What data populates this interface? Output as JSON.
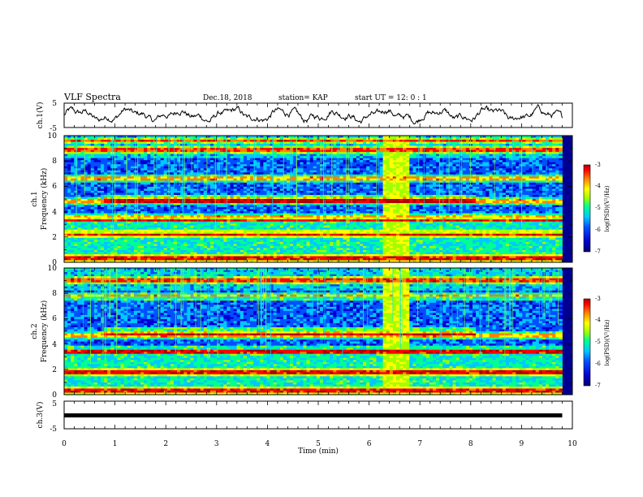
{
  "header": {
    "title": "VLF Spectra",
    "date": "Dec.18, 2018",
    "station": "station= KAP",
    "start": "start  UT =   12: 0  : 1"
  },
  "chart_data": [
    {
      "type": "line",
      "title": "",
      "ylabel": "ch.1(V)",
      "xlim": [
        0,
        10
      ],
      "ylim": [
        -5,
        5
      ],
      "yticks": [
        "5",
        "-5"
      ],
      "description_series": "noisy waveform oscillating around 0 V, amplitude about ±2.5 V"
    },
    {
      "type": "heatmap",
      "ylabel_line1": "ch.1",
      "ylabel_line2": "Frequency (kHz)",
      "xlim": [
        0,
        10
      ],
      "ylim": [
        0,
        10
      ],
      "yticks": [
        "0",
        "2",
        "4",
        "6",
        "8",
        "10"
      ],
      "colorbar": {
        "label": "log(PSD)(V²/Hz)",
        "range": [
          -7,
          -3
        ],
        "ticks": [
          "-3",
          "-4",
          "-5",
          "-6",
          "-7"
        ]
      },
      "strong_lines_khz": [
        0.3,
        2.2,
        3.3,
        3.6,
        4.8,
        6.6,
        8.9,
        9.6
      ],
      "burst_interval_min": [
        6.3,
        6.8
      ],
      "regime_changes_min": [
        0.8,
        8.1
      ]
    },
    {
      "type": "heatmap",
      "ylabel_line1": "ch.2",
      "ylabel_line2": "Frequency (kHz)",
      "xlim": [
        0,
        10
      ],
      "ylim": [
        0,
        10
      ],
      "yticks": [
        "0",
        "2",
        "4",
        "6",
        "8",
        "10"
      ],
      "colorbar": {
        "label": "log(PSD)(V²/Hz)",
        "range": [
          -7,
          -3
        ],
        "ticks": [
          "-3",
          "-4",
          "-5",
          "-6",
          "-7"
        ]
      },
      "strong_lines_khz": [
        0.3,
        1.8,
        3.3,
        3.5,
        4.7,
        7.8,
        9.0
      ],
      "burst_interval_min": [
        6.3,
        6.8
      ],
      "regime_changes_min": [
        0.8,
        8.1
      ]
    },
    {
      "type": "line",
      "ylabel": "ch.3(V)",
      "xlim": [
        0,
        10
      ],
      "ylim": [
        -5,
        5
      ],
      "yticks": [
        "5",
        "-5"
      ],
      "x_start": 0,
      "x_end": 9.8,
      "constant_value": 0,
      "xlabel": "Time (min)",
      "xticks": [
        "0",
        "1",
        "2",
        "3",
        "4",
        "5",
        "6",
        "7",
        "8",
        "9",
        "10"
      ]
    }
  ],
  "colors": {
    "colormap": [
      "#000070",
      "#0000d0",
      "#0050ff",
      "#00c8ff",
      "#00ff90",
      "#a0ff00",
      "#ffff00",
      "#ff8000",
      "#ff0000",
      "#b00000"
    ],
    "background_low": "#000090"
  }
}
